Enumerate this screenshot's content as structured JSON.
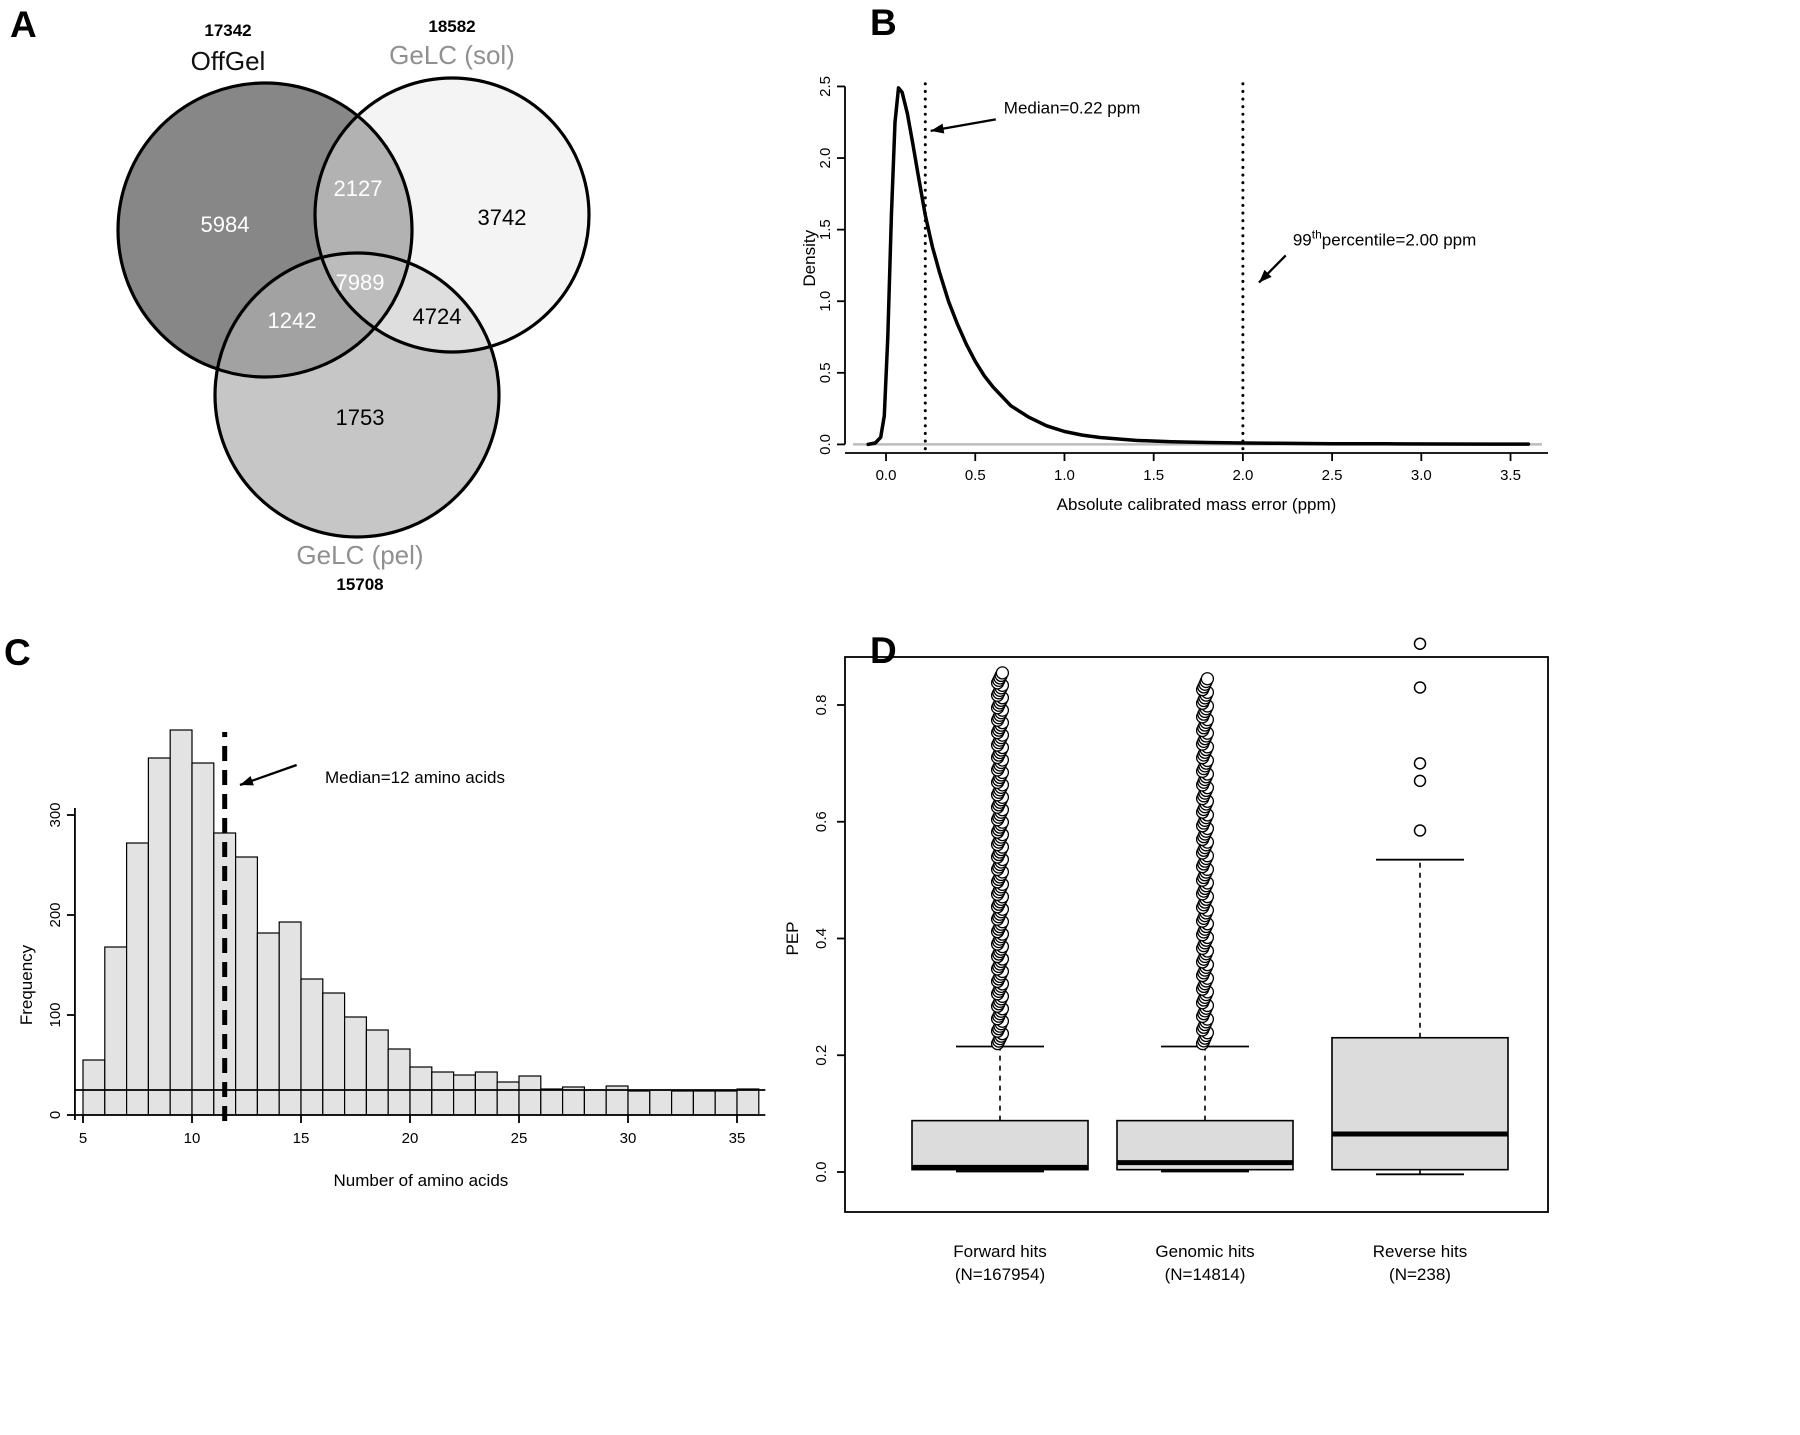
{
  "figure": {
    "background": "#ffffff",
    "panels": [
      {
        "label": "A"
      },
      {
        "label": "B"
      },
      {
        "label": "C"
      },
      {
        "label": "D"
      }
    ]
  },
  "chart_data": [
    {
      "panel": "A",
      "type": "venn",
      "title": "",
      "sets": [
        {
          "name": "OffGel",
          "total": "17342",
          "fill": "#878787",
          "name_color": "#111111"
        },
        {
          "name": "GeLC (sol)",
          "total": "18582",
          "fill": "#f4f4f4",
          "name_color": "#909090"
        },
        {
          "name": "GeLC (pel)",
          "total": "15708",
          "fill": "#c6c6c6",
          "name_color": "#909090"
        }
      ],
      "regions": {
        "offgel_only": {
          "value": "5984",
          "text_color": "#ffffff",
          "fill": null
        },
        "offgel_sol": {
          "value": "2127",
          "text_color": "#ffffff",
          "fill": "#b2b2b2"
        },
        "sol_only": {
          "value": "3742",
          "text_color": "#000000",
          "fill": null
        },
        "center": {
          "value": "7989",
          "text_color": "#ffffff",
          "fill": "#bcbcbc"
        },
        "offgel_pel": {
          "value": "1242",
          "text_color": "#ffffff",
          "fill": "#a2a2a2"
        },
        "sol_pel": {
          "value": "4724",
          "text_color": "#000000",
          "fill": "#dedede"
        },
        "pel_only": {
          "value": "1753",
          "text_color": "#000000",
          "fill": null
        }
      }
    },
    {
      "panel": "B",
      "type": "line",
      "title": "",
      "xlabel": "Absolute calibrated mass error (ppm)",
      "ylabel": "Density",
      "xlim": [
        -0.23,
        3.71
      ],
      "ylim": [
        -0.06,
        2.58
      ],
      "xticks": [
        0,
        0.5,
        1,
        1.5,
        2,
        2.5,
        3,
        3.5
      ],
      "yticks": [
        0,
        0.5,
        1,
        1.5,
        2,
        2.5
      ],
      "grid": false,
      "legend": "none",
      "baseline_color": "#bdbdbd",
      "series": [
        {
          "name": "mass error density",
          "x": [
            -0.1,
            -0.06,
            -0.03,
            -0.01,
            0.01,
            0.03,
            0.05,
            0.07,
            0.09,
            0.12,
            0.15,
            0.18,
            0.22,
            0.26,
            0.3,
            0.35,
            0.4,
            0.45,
            0.5,
            0.55,
            0.6,
            0.7,
            0.8,
            0.9,
            1.0,
            1.1,
            1.2,
            1.4,
            1.6,
            1.8,
            2.0,
            2.2,
            2.5,
            2.8,
            3.1,
            3.4,
            3.6
          ],
          "y": [
            0.0,
            0.01,
            0.05,
            0.2,
            0.75,
            1.6,
            2.25,
            2.49,
            2.46,
            2.31,
            2.1,
            1.88,
            1.6,
            1.38,
            1.2,
            1.0,
            0.84,
            0.7,
            0.58,
            0.48,
            0.4,
            0.27,
            0.19,
            0.13,
            0.09,
            0.065,
            0.048,
            0.028,
            0.018,
            0.013,
            0.01,
            0.008,
            0.005,
            0.004,
            0.003,
            0.002,
            0.002
          ]
        }
      ],
      "vlines": [
        {
          "x": 0.22,
          "style": "dotted"
        },
        {
          "x": 2.0,
          "style": "dotted"
        }
      ],
      "annotations": [
        {
          "pre": "Median=0.22 ppm",
          "sup": "",
          "post": "",
          "text_x": 0.66,
          "text_y": 2.31,
          "tail_x": 0.615,
          "tail_y": 2.27,
          "tip_x": 0.25,
          "tip_y": 2.19
        },
        {
          "pre": "99",
          "sup": "th",
          "post": "percentile=2.00 ppm",
          "text_x": 2.28,
          "text_y": 1.39,
          "tail_x": 2.24,
          "tail_y": 1.32,
          "tip_x": 2.09,
          "tip_y": 1.13
        }
      ]
    },
    {
      "panel": "C",
      "type": "bar",
      "title": "",
      "xlabel": "Number of amino acids",
      "ylabel": "Frequency",
      "bin_start": 5,
      "bin_width": 1,
      "values": [
        55,
        168,
        272,
        357,
        385,
        352,
        282,
        258,
        182,
        193,
        136,
        122,
        98,
        85,
        66,
        48,
        43,
        40,
        43,
        33,
        39,
        26,
        28,
        25,
        29,
        24,
        25,
        24,
        24,
        24,
        26
      ],
      "xticks": [
        5,
        10,
        15,
        20,
        25,
        30,
        35
      ],
      "yticks": [
        0,
        100,
        200,
        300
      ],
      "ylim": [
        0,
        400
      ],
      "bar_fill": "#e3e3e3",
      "axis_overlay_y": 25,
      "median_line_x": 11.5,
      "annotation": {
        "pre": "Median=12 amino acids",
        "text_x": 16.1,
        "text_y": 332,
        "tail_x": 14.8,
        "tail_y": 350,
        "tip_x": 12.2,
        "tip_y": 330
      }
    },
    {
      "panel": "D",
      "type": "boxplot",
      "title": "",
      "ylabel": "PEP",
      "yticks": [
        0,
        0.2,
        0.4,
        0.6,
        0.8
      ],
      "ylim": [
        -0.07,
        0.88
      ],
      "box_fill": "#dcdcdc",
      "groups": [
        {
          "label": "Forward hits",
          "n_label": "(N=167954)",
          "q1": 0.004,
          "median": 0.008,
          "q3": 0.088,
          "whisker_low": 0.001,
          "whisker_high": 0.215,
          "outliers_dense": {
            "min": 0.22,
            "max": 0.855,
            "count": 150
          },
          "outliers": []
        },
        {
          "label": "Genomic hits",
          "n_label": "(N=14814)",
          "q1": 0.004,
          "median": 0.016,
          "q3": 0.088,
          "whisker_low": 0.001,
          "whisker_high": 0.215,
          "outliers_dense": {
            "min": 0.22,
            "max": 0.845,
            "count": 135
          },
          "outliers": []
        },
        {
          "label": "Reverse hits",
          "n_label": "(N=238)",
          "q1": 0.004,
          "median": 0.065,
          "q3": 0.23,
          "whisker_low": -0.004,
          "whisker_high": 0.535,
          "outliers_dense": null,
          "outliers": [
            0.585,
            0.67,
            0.7,
            0.83,
            0.905
          ]
        }
      ]
    }
  ]
}
